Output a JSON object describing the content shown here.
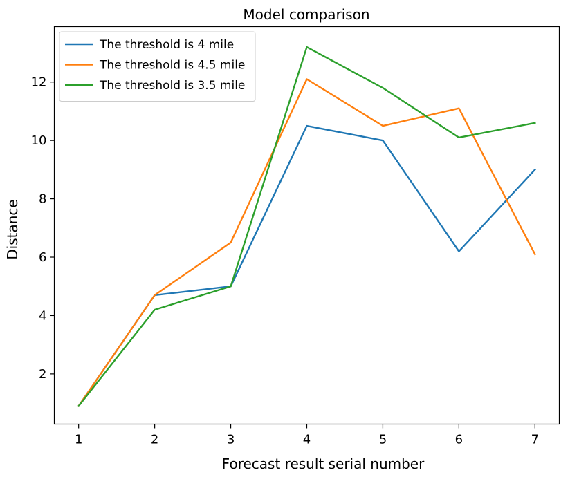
{
  "chart_data": {
    "type": "line",
    "title": "Model comparison",
    "xlabel": "Forecast result serial number",
    "ylabel": "Distance",
    "x": [
      1,
      2,
      3,
      4,
      5,
      6,
      7
    ],
    "xlim": [
      0.68,
      7.32
    ],
    "ylim": [
      0.28,
      13.9
    ],
    "xticks": [
      1,
      2,
      3,
      4,
      5,
      6,
      7
    ],
    "yticks": [
      2,
      4,
      6,
      8,
      10,
      12
    ],
    "grid": false,
    "legend_position": "top-left",
    "series": [
      {
        "name": "The threshold is 4 mile",
        "color": "#1f77b4",
        "values": [
          0.9,
          4.7,
          5.0,
          10.5,
          10.0,
          6.2,
          9.0
        ]
      },
      {
        "name": "The threshold is 4.5 mile",
        "color": "#ff7f0e",
        "values": [
          0.9,
          4.7,
          6.5,
          12.1,
          10.5,
          11.1,
          6.1
        ]
      },
      {
        "name": "The threshold is 3.5 mile",
        "color": "#2ca02c",
        "values": [
          0.9,
          4.2,
          5.0,
          13.2,
          11.8,
          10.1,
          10.6
        ]
      }
    ]
  }
}
